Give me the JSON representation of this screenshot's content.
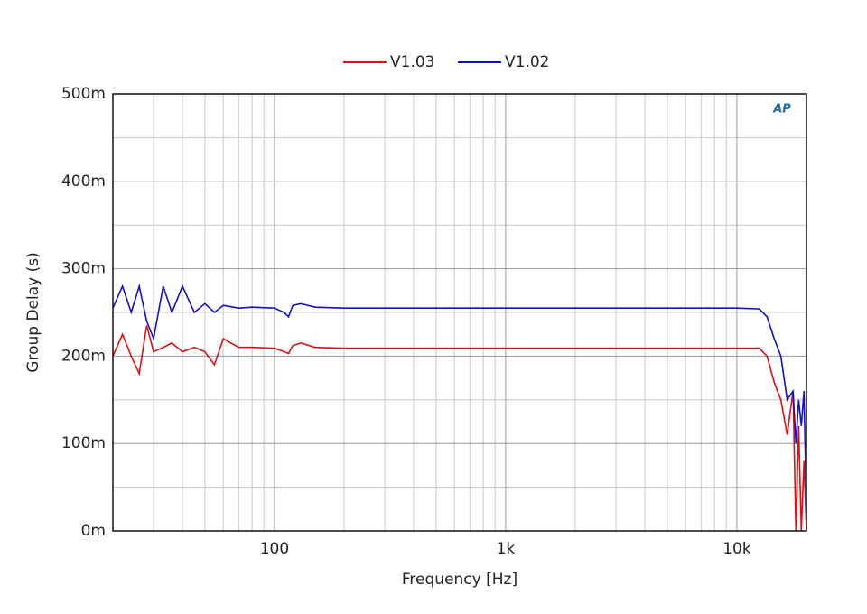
{
  "chart_data": {
    "type": "line",
    "xlabel": "Frequency [Hz]",
    "ylabel": "Group Delay (s)",
    "logo": "AP",
    "xscale": "log",
    "grid": true,
    "legend": "top",
    "xlim": [
      20,
      20000
    ],
    "ylim": [
      0,
      0.5
    ],
    "xticks": [
      100,
      {
        "value": 1000,
        "label": "1k"
      },
      {
        "value": 10000,
        "label": "10k"
      }
    ],
    "xminorticks": [
      30,
      40,
      50,
      60,
      70,
      80,
      90,
      200,
      300,
      400,
      500,
      600,
      700,
      800,
      900,
      2000,
      3000,
      4000,
      5000,
      6000,
      7000,
      8000,
      9000
    ],
    "yticks": [
      {
        "value": 0,
        "label": "0m"
      },
      {
        "value": 0.1,
        "label": "100m"
      },
      {
        "value": 0.2,
        "label": "200m"
      },
      {
        "value": 0.3,
        "label": "300m"
      },
      {
        "value": 0.4,
        "label": "400m"
      },
      {
        "value": 0.5,
        "label": "500m"
      }
    ],
    "yminorticks": [
      0.05,
      0.15,
      0.25,
      0.35,
      0.45
    ],
    "x": [
      20,
      22,
      24,
      26,
      28,
      30,
      33,
      36,
      40,
      45,
      50,
      55,
      60,
      70,
      80,
      100,
      110,
      115,
      120,
      130,
      150,
      200,
      300,
      500,
      1000,
      2000,
      5000,
      10000,
      12500,
      13500,
      14500,
      15500,
      16500,
      17500,
      18000,
      18500,
      19000,
      19500,
      20000
    ],
    "series": [
      {
        "name": "V1.03",
        "color": "#e01010",
        "values": [
          0.2,
          0.225,
          0.2,
          0.18,
          0.235,
          0.205,
          0.21,
          0.215,
          0.205,
          0.21,
          0.205,
          0.19,
          0.22,
          0.21,
          0.21,
          0.209,
          0.205,
          0.203,
          0.212,
          0.215,
          0.21,
          0.209,
          0.209,
          0.209,
          0.209,
          0.209,
          0.209,
          0.209,
          0.209,
          0.2,
          0.17,
          0.15,
          0.11,
          0.16,
          0.0,
          0.12,
          0.0,
          0.08,
          0.0
        ]
      },
      {
        "name": "V1.02",
        "color": "#1010d0",
        "values": [
          0.255,
          0.28,
          0.25,
          0.28,
          0.24,
          0.22,
          0.28,
          0.25,
          0.28,
          0.25,
          0.26,
          0.25,
          0.258,
          0.255,
          0.256,
          0.255,
          0.25,
          0.245,
          0.258,
          0.26,
          0.256,
          0.255,
          0.255,
          0.255,
          0.255,
          0.255,
          0.255,
          0.255,
          0.254,
          0.245,
          0.22,
          0.2,
          0.15,
          0.16,
          0.1,
          0.15,
          0.12,
          0.16,
          0.02
        ]
      }
    ]
  }
}
